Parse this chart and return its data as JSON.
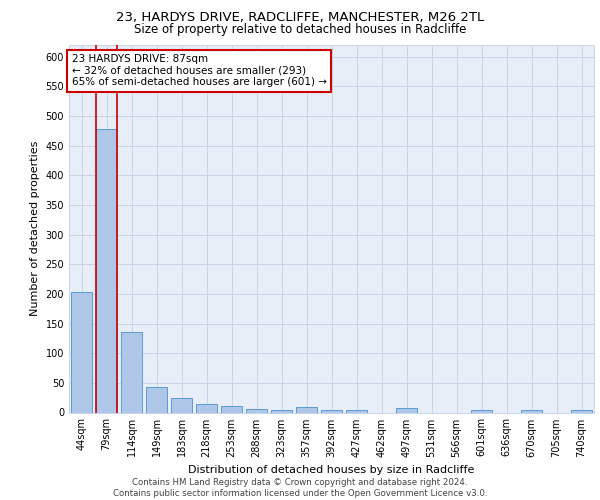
{
  "title_line1": "23, HARDYS DRIVE, RADCLIFFE, MANCHESTER, M26 2TL",
  "title_line2": "Size of property relative to detached houses in Radcliffe",
  "xlabel": "Distribution of detached houses by size in Radcliffe",
  "ylabel": "Number of detached properties",
  "footer_line1": "Contains HM Land Registry data © Crown copyright and database right 2024.",
  "footer_line2": "Contains public sector information licensed under the Open Government Licence v3.0.",
  "annotation_title": "23 HARDYS DRIVE: 87sqm",
  "annotation_line2": "← 32% of detached houses are smaller (293)",
  "annotation_line3": "65% of semi-detached houses are larger (601) →",
  "bar_labels": [
    "44sqm",
    "79sqm",
    "114sqm",
    "149sqm",
    "183sqm",
    "218sqm",
    "253sqm",
    "288sqm",
    "323sqm",
    "357sqm",
    "392sqm",
    "427sqm",
    "462sqm",
    "497sqm",
    "531sqm",
    "566sqm",
    "601sqm",
    "636sqm",
    "670sqm",
    "705sqm",
    "740sqm"
  ],
  "bar_values": [
    203,
    478,
    135,
    43,
    24,
    14,
    11,
    6,
    5,
    10,
    5,
    5,
    0,
    8,
    0,
    0,
    5,
    0,
    5,
    0,
    5
  ],
  "bar_color": "#aec6e8",
  "bar_edge_color": "#5b9bd5",
  "property_bar_index": 1,
  "ylim": [
    0,
    620
  ],
  "yticks": [
    0,
    50,
    100,
    150,
    200,
    250,
    300,
    350,
    400,
    450,
    500,
    550,
    600
  ],
  "grid_color": "#c8d4e8",
  "plot_bg_color": "#e8eef8",
  "annotation_box_color": "#ffffff",
  "annotation_box_edge": "#cc0000",
  "red_line_color": "#cc0000",
  "title1_fontsize": 9.5,
  "title2_fontsize": 8.5,
  "axis_label_fontsize": 8,
  "tick_fontsize": 7,
  "annotation_fontsize": 7.5,
  "footer_fontsize": 6.2
}
